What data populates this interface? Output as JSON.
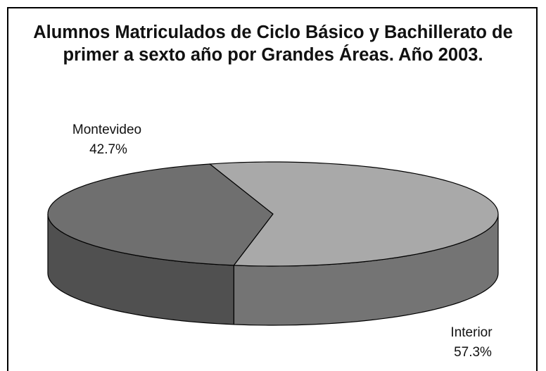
{
  "chart_data": {
    "type": "pie",
    "title": "Alumnos Matriculados de Ciclo Básico y Bachillerato de primer a sexto año por Grandes Áreas. Año 2003.",
    "categories": [
      "Montevideo",
      "Interior"
    ],
    "values": [
      42.7,
      57.3
    ],
    "value_labels": [
      "42.7%",
      "57.3%"
    ],
    "colors": [
      "#6f6f6f",
      "#a9a9a9"
    ],
    "side_colors": [
      "#505050",
      "#747474"
    ]
  }
}
